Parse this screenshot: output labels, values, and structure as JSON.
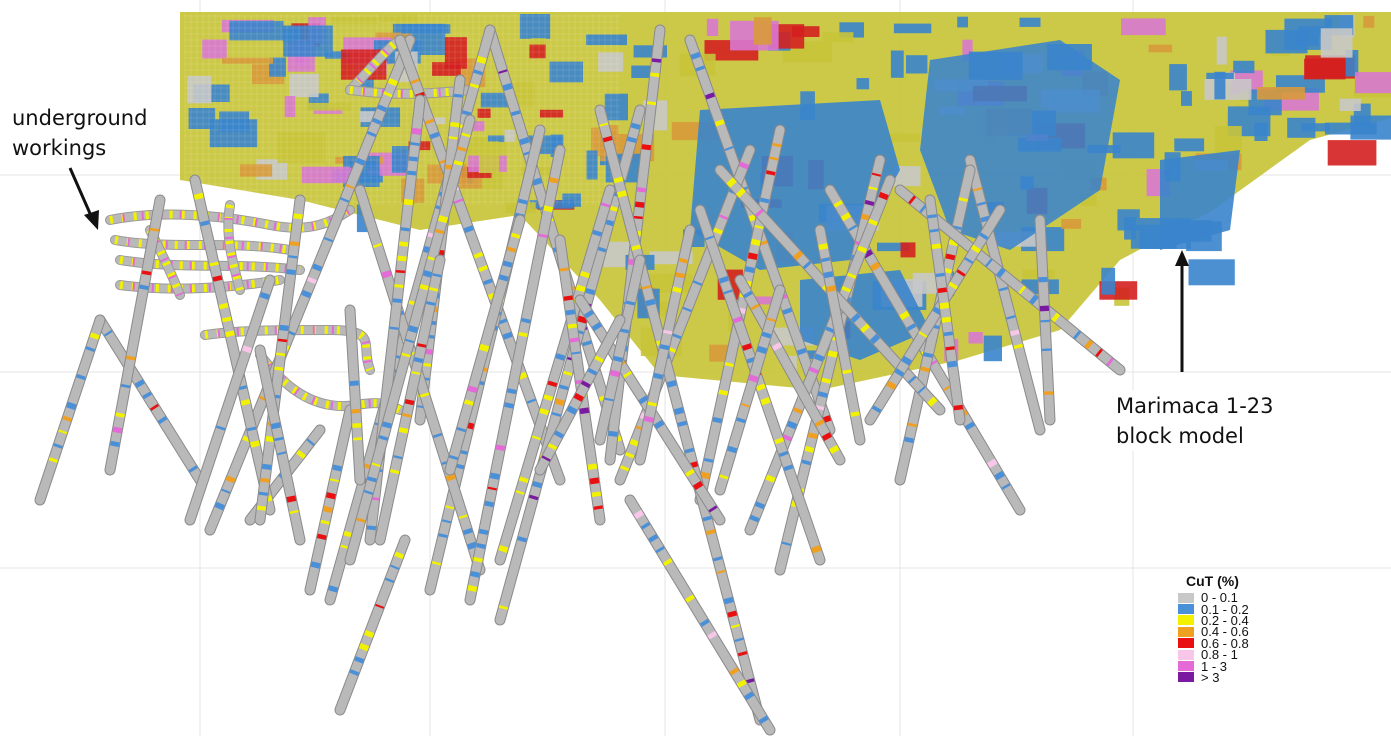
{
  "annotations": {
    "underground_line1": "underground",
    "underground_line2": "workings",
    "block_model_line1": "Marimaca 1-23",
    "block_model_line2": "block model"
  },
  "legend": {
    "title": "CuT (%)",
    "items": [
      {
        "label": "0 - 0.1",
        "color": "#c8c8c8"
      },
      {
        "label": "0.1 - 0.2",
        "color": "#4a90d9"
      },
      {
        "label": "0.2 - 0.4",
        "color": "#f2f200"
      },
      {
        "label": "0.4 - 0.6",
        "color": "#f0a020"
      },
      {
        "label": "0.6 - 0.8",
        "color": "#e81010"
      },
      {
        "label": "0.8 - 1",
        "color": "#f7c6e9"
      },
      {
        "label": "1 - 3",
        "color": "#e46ad8"
      },
      {
        "label": "> 3",
        "color": "#7a1aa0"
      }
    ]
  },
  "colors": {
    "block_blue": "#3a84cc",
    "block_olive": "#c8c43a",
    "block_orange": "#d89a3a",
    "block_red": "#d42020",
    "block_pink": "#d878d0",
    "drillhole_grey": "#b9b9b9"
  }
}
